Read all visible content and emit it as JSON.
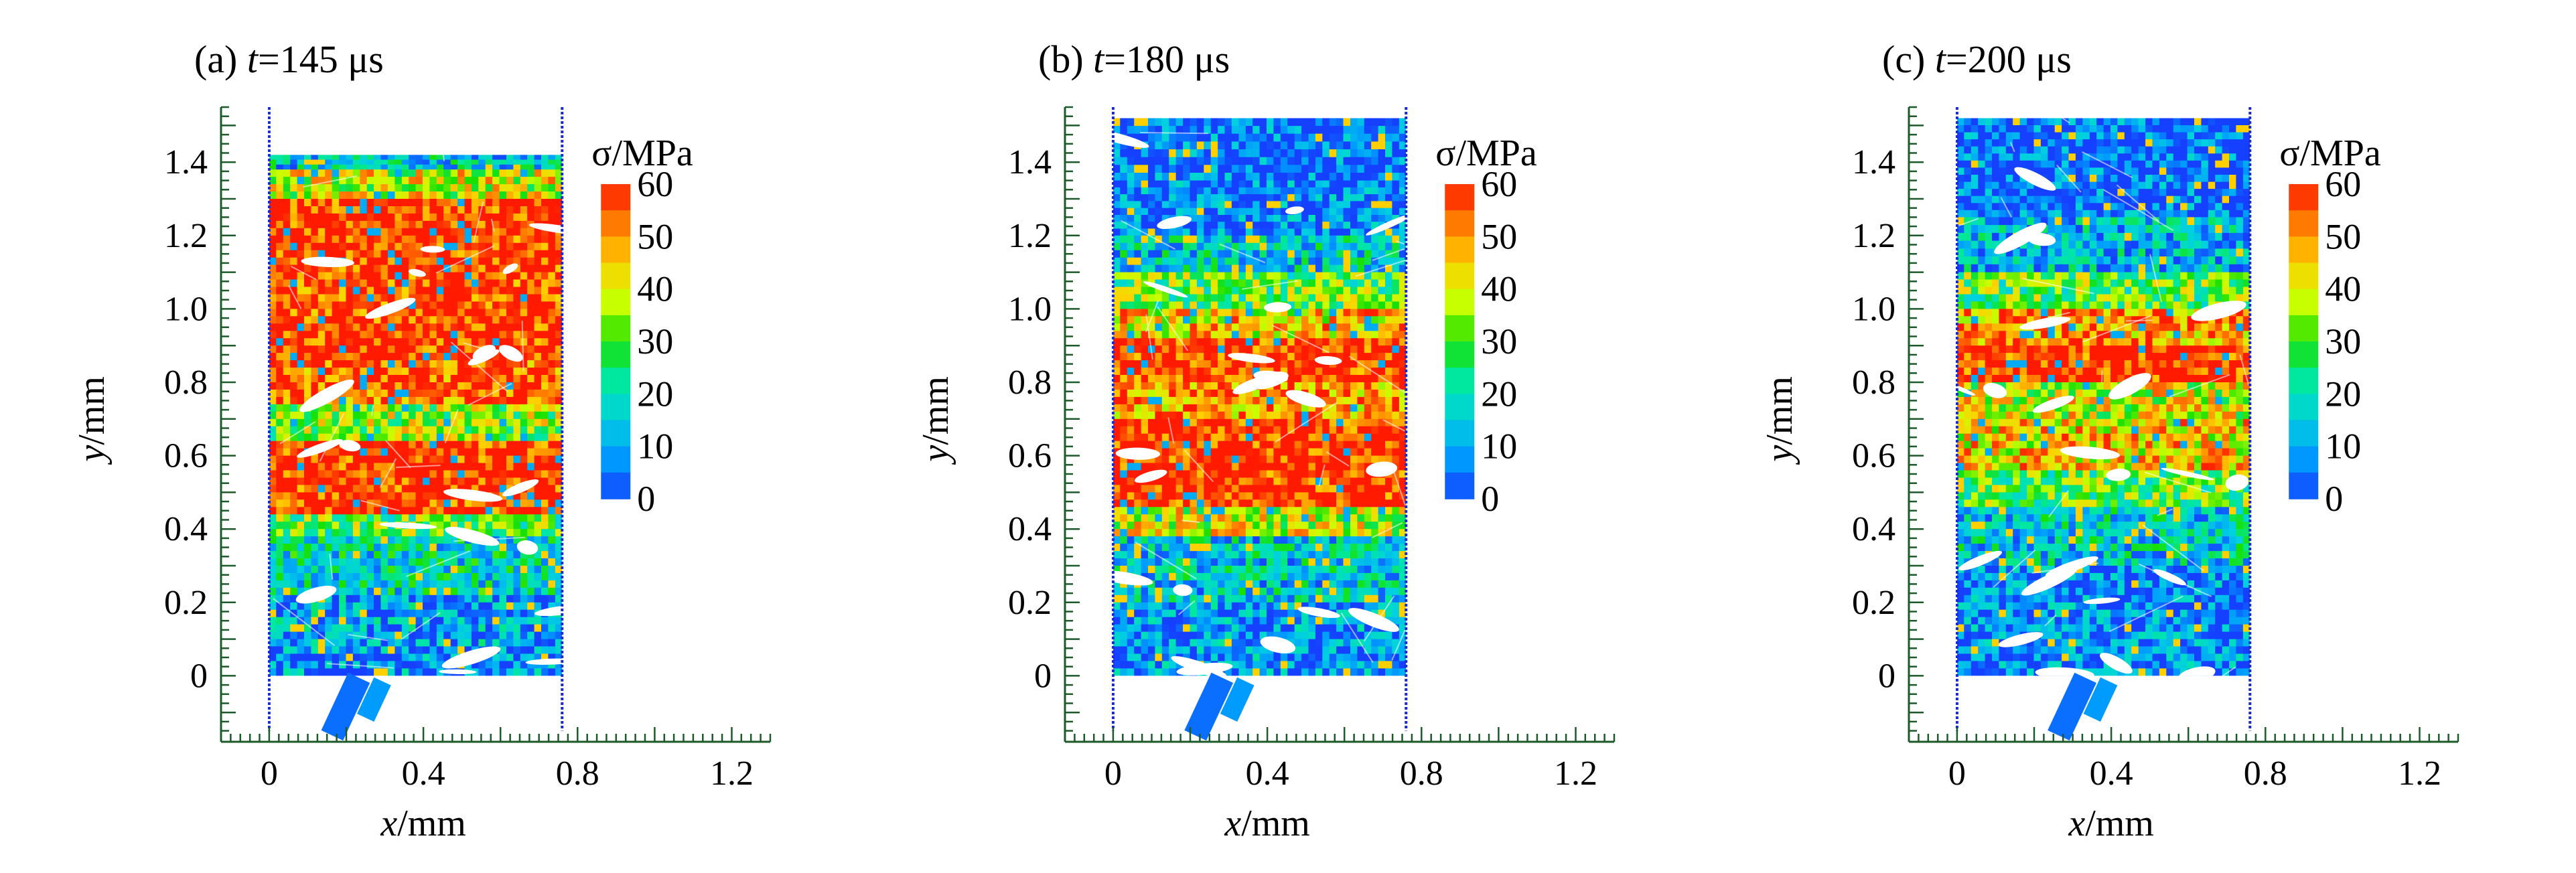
{
  "chart_data": [
    {
      "type": "heatmap",
      "title": "(a) t=145 μs",
      "title_prefix": "(a) ",
      "title_var": "t",
      "title_rest": "=145 μs",
      "xlabel_var": "x",
      "xlabel_unit": "/mm",
      "ylabel_var": "y",
      "ylabel_unit": "/mm",
      "xlim": [
        -0.125,
        1.3
      ],
      "ylim": [
        -0.18,
        1.55
      ],
      "xticks": [
        0,
        0.4,
        0.8,
        1.2
      ],
      "xtick_labels": [
        "0",
        "0.4",
        "0.8",
        "1.2"
      ],
      "yticks": [
        0,
        0.2,
        0.4,
        0.6,
        0.8,
        1.0,
        1.2,
        1.4
      ],
      "ytick_labels": [
        "0",
        "0.2",
        "0.4",
        "0.6",
        "0.8",
        "1.0",
        "1.2",
        "1.4"
      ],
      "boundary_x": [
        0,
        0.76
      ],
      "colorbar_title": "σ/MPa",
      "colorbar_labels": [
        "60",
        "50",
        "40",
        "30",
        "20",
        "10",
        "0"
      ],
      "stress_bands": [
        {
          "y0": 1.38,
          "y1": 1.42,
          "level": 15
        },
        {
          "y0": 1.3,
          "y1": 1.38,
          "level": 40
        },
        {
          "y0": 1.1,
          "y1": 1.3,
          "level": 60
        },
        {
          "y0": 0.96,
          "y1": 1.1,
          "level": 58
        },
        {
          "y0": 0.86,
          "y1": 0.96,
          "level": 60
        },
        {
          "y0": 0.74,
          "y1": 0.86,
          "level": 55
        },
        {
          "y0": 0.64,
          "y1": 0.74,
          "level": 35
        },
        {
          "y0": 0.44,
          "y1": 0.64,
          "level": 60
        },
        {
          "y0": 0.38,
          "y1": 0.44,
          "level": 30
        },
        {
          "y0": 0.22,
          "y1": 0.38,
          "level": 18
        },
        {
          "y0": 0.08,
          "y1": 0.22,
          "level": 10
        },
        {
          "y0": 0.0,
          "y1": 0.08,
          "level": 8
        }
      ]
    },
    {
      "type": "heatmap",
      "title": "(b) t=180 μs",
      "title_prefix": "(b) ",
      "title_var": "t",
      "title_rest": "=180 μs",
      "xlabel_var": "x",
      "xlabel_unit": "/mm",
      "ylabel_var": "y",
      "ylabel_unit": "/mm",
      "xlim": [
        -0.125,
        1.3
      ],
      "ylim": [
        -0.18,
        1.55
      ],
      "xticks": [
        0,
        0.4,
        0.8,
        1.2
      ],
      "xtick_labels": [
        "0",
        "0.4",
        "0.8",
        "1.2"
      ],
      "yticks": [
        0,
        0.2,
        0.4,
        0.6,
        0.8,
        1.0,
        1.2,
        1.4
      ],
      "ytick_labels": [
        "0",
        "0.2",
        "0.4",
        "0.6",
        "0.8",
        "1.0",
        "1.2",
        "1.4"
      ],
      "boundary_x": [
        0,
        0.76
      ],
      "colorbar_title": "σ/MPa",
      "colorbar_labels": [
        "60",
        "50",
        "40",
        "30",
        "20",
        "10",
        "0"
      ],
      "stress_bands": [
        {
          "y0": 1.35,
          "y1": 1.52,
          "level": 3
        },
        {
          "y0": 1.2,
          "y1": 1.35,
          "level": 5
        },
        {
          "y0": 1.1,
          "y1": 1.2,
          "level": 15
        },
        {
          "y0": 1.0,
          "y1": 1.1,
          "level": 30
        },
        {
          "y0": 0.92,
          "y1": 1.0,
          "level": 45
        },
        {
          "y0": 0.8,
          "y1": 0.92,
          "level": 60
        },
        {
          "y0": 0.7,
          "y1": 0.8,
          "level": 50
        },
        {
          "y0": 0.46,
          "y1": 0.7,
          "level": 60
        },
        {
          "y0": 0.38,
          "y1": 0.46,
          "level": 40
        },
        {
          "y0": 0.2,
          "y1": 0.38,
          "level": 15
        },
        {
          "y0": 0.0,
          "y1": 0.2,
          "level": 8
        }
      ]
    },
    {
      "type": "heatmap",
      "title": "(c) t=200 μs",
      "title_prefix": "(c) ",
      "title_var": "t",
      "title_rest": "=200 μs",
      "xlabel_var": "x",
      "xlabel_unit": "/mm",
      "ylabel_var": "y",
      "ylabel_unit": "/mm",
      "xlim": [
        -0.125,
        1.3
      ],
      "ylim": [
        -0.18,
        1.55
      ],
      "xticks": [
        0,
        0.4,
        0.8,
        1.2
      ],
      "xtick_labels": [
        "0",
        "0.4",
        "0.8",
        "1.2"
      ],
      "yticks": [
        0,
        0.2,
        0.4,
        0.6,
        0.8,
        1.0,
        1.2,
        1.4
      ],
      "ytick_labels": [
        "0",
        "0.2",
        "0.4",
        "0.6",
        "0.8",
        "1.0",
        "1.2",
        "1.4"
      ],
      "boundary_x": [
        0,
        0.76
      ],
      "colorbar_title": "σ/MPa",
      "colorbar_labels": [
        "60",
        "50",
        "40",
        "30",
        "20",
        "10",
        "0"
      ],
      "stress_bands": [
        {
          "y0": 1.25,
          "y1": 1.52,
          "level": 3
        },
        {
          "y0": 1.1,
          "y1": 1.25,
          "level": 12
        },
        {
          "y0": 1.0,
          "y1": 1.1,
          "level": 30
        },
        {
          "y0": 0.9,
          "y1": 1.0,
          "level": 50
        },
        {
          "y0": 0.8,
          "y1": 0.9,
          "level": 60
        },
        {
          "y0": 0.7,
          "y1": 0.8,
          "level": 40
        },
        {
          "y0": 0.56,
          "y1": 0.7,
          "level": 45
        },
        {
          "y0": 0.46,
          "y1": 0.56,
          "level": 30
        },
        {
          "y0": 0.3,
          "y1": 0.46,
          "level": 15
        },
        {
          "y0": 0.0,
          "y1": 0.3,
          "level": 6
        }
      ]
    }
  ],
  "colors": {
    "colorbar_stops": [
      "#ff1a00",
      "#ff7a00",
      "#ffd000",
      "#c8ff00",
      "#18e000",
      "#00e8a0",
      "#00d0e0",
      "#0098ff",
      "#1540ff"
    ],
    "boundary_line": "#1a2ccf",
    "axis": "#1d5a2a",
    "void": "#ffffff"
  }
}
